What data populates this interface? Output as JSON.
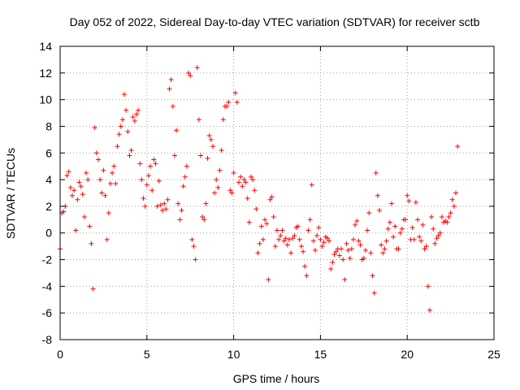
{
  "chart_data": {
    "type": "scatter",
    "title": "Day 052 of 2022, Sidereal Day-to-day VTEC variation (SDTVAR) for receiver sctb",
    "xlabel": "GPS time / hours",
    "ylabel": "SDTVAR / TECUs",
    "xlim": [
      0,
      25
    ],
    "ylim": [
      -8,
      14
    ],
    "xticks": [
      0,
      5,
      10,
      15,
      20,
      25
    ],
    "xtick_labels": [
      "0",
      "5",
      "10",
      "15",
      "20",
      "25"
    ],
    "yticks": [
      -8,
      -6,
      -4,
      -2,
      0,
      2,
      4,
      6,
      8,
      10,
      12,
      14
    ],
    "ytick_labels": [
      "-8",
      "-6",
      "-4",
      "-2",
      "0",
      "2",
      "4",
      "6",
      "8",
      "10",
      "12",
      "14"
    ],
    "grid": true,
    "marker": "+",
    "color": "#ff0000",
    "series": [
      {
        "name": "SDTVAR",
        "x": [
          0.0,
          0.1,
          0.2,
          0.3,
          0.4,
          0.5,
          0.6,
          0.7,
          0.8,
          0.9,
          1.0,
          1.1,
          1.2,
          1.3,
          1.4,
          1.5,
          1.6,
          1.7,
          1.8,
          1.9,
          2.0,
          2.1,
          2.2,
          2.3,
          2.4,
          2.5,
          2.6,
          2.7,
          2.8,
          2.9,
          3.0,
          3.1,
          3.2,
          3.3,
          3.4,
          3.5,
          3.6,
          3.7,
          3.8,
          3.9,
          4.0,
          4.1,
          4.2,
          4.3,
          4.4,
          4.5,
          4.6,
          4.7,
          4.8,
          4.9,
          5.0,
          5.1,
          5.2,
          5.3,
          5.4,
          5.5,
          5.6,
          5.7,
          5.8,
          5.9,
          6.0,
          6.1,
          6.2,
          6.3,
          6.4,
          6.5,
          6.6,
          6.7,
          6.8,
          6.9,
          7.0,
          7.1,
          7.2,
          7.3,
          7.4,
          7.5,
          7.6,
          7.7,
          7.8,
          7.9,
          8.0,
          8.1,
          8.2,
          8.3,
          8.4,
          8.5,
          8.6,
          8.7,
          8.8,
          8.9,
          9.0,
          9.1,
          9.2,
          9.3,
          9.4,
          9.5,
          9.6,
          9.7,
          9.8,
          9.9,
          10.0,
          10.1,
          10.2,
          10.3,
          10.4,
          10.5,
          10.6,
          10.7,
          10.8,
          10.9,
          11.0,
          11.1,
          11.2,
          11.3,
          11.4,
          11.5,
          11.6,
          11.7,
          11.8,
          11.9,
          12.0,
          12.1,
          12.2,
          12.3,
          12.4,
          12.5,
          12.6,
          12.7,
          12.8,
          12.9,
          13.0,
          13.1,
          13.2,
          13.3,
          13.4,
          13.5,
          13.6,
          13.7,
          13.8,
          13.9,
          14.0,
          14.1,
          14.2,
          14.3,
          14.4,
          14.5,
          14.6,
          14.7,
          14.8,
          14.9,
          15.0,
          15.1,
          15.2,
          15.3,
          15.4,
          15.5,
          15.6,
          15.7,
          15.8,
          15.9,
          16.0,
          16.1,
          16.2,
          16.3,
          16.4,
          16.5,
          16.6,
          16.7,
          16.8,
          16.9,
          17.0,
          17.1,
          17.2,
          17.3,
          17.4,
          17.5,
          17.6,
          17.7,
          17.8,
          17.9,
          18.0,
          18.1,
          18.2,
          18.3,
          18.4,
          18.5,
          18.6,
          18.7,
          18.8,
          18.9,
          19.0,
          19.1,
          19.2,
          19.3,
          19.4,
          19.5,
          19.6,
          19.7,
          19.8,
          19.9,
          20.0,
          20.1,
          20.2,
          20.3,
          20.4,
          20.5,
          20.6,
          20.7,
          20.8,
          20.9,
          21.0,
          21.1,
          21.2,
          21.3,
          21.4,
          21.5,
          21.6,
          21.7,
          21.8,
          21.9,
          22.0,
          22.1,
          22.2,
          22.3,
          22.4,
          22.5,
          22.6,
          22.7,
          22.8,
          22.9
        ],
        "y": [
          -1.2,
          1.5,
          1.6,
          2.0,
          4.3,
          4.6,
          3.4,
          2.8,
          3.2,
          0.2,
          2.5,
          3.8,
          3.5,
          2.9,
          1.2,
          4.5,
          4.0,
          0.5,
          -0.8,
          -4.2,
          7.9,
          6.0,
          5.5,
          4.0,
          3.0,
          4.7,
          2.8,
          -0.5,
          1.5,
          3.7,
          4.5,
          5.0,
          3.7,
          6.5,
          7.4,
          8.0,
          8.5,
          10.4,
          9.2,
          7.6,
          5.8,
          6.2,
          8.7,
          8.4,
          8.9,
          9.2,
          5.2,
          4.0,
          2.6,
          2.0,
          3.6,
          4.3,
          5.0,
          3.2,
          5.5,
          5.2,
          2.0,
          3.9,
          2.1,
          1.7,
          2.2,
          1.8,
          2.5,
          10.8,
          11.5,
          9.5,
          5.8,
          7.7,
          2.2,
          1.0,
          1.7,
          3.5,
          4.2,
          5.0,
          12.0,
          11.8,
          -0.5,
          -1.0,
          -2.0,
          12.4,
          8.5,
          5.8,
          1.2,
          1.0,
          2.2,
          5.6,
          7.3,
          7.0,
          6.5,
          3.0,
          4.0,
          3.4,
          4.7,
          6.2,
          8.5,
          9.5,
          9.5,
          9.8,
          3.2,
          3.0,
          4.5,
          10.5,
          9.8,
          3.8,
          4.2,
          3.5,
          4.0,
          3.8,
          2.6,
          0.8,
          4.2,
          4.0,
          3.2,
          1.8,
          -1.5,
          -0.8,
          0.5,
          -0.5,
          1.0,
          0.7,
          -3.5,
          2.5,
          2.7,
          1.2,
          -1.0,
          0.2,
          -0.5,
          -0.2,
          0.2,
          -0.6,
          -0.4,
          -0.9,
          -0.5,
          -1.5,
          -0.4,
          -0.2,
          0.4,
          0.5,
          -0.5,
          -1.0,
          -1.4,
          -2.5,
          -3.2,
          0.2,
          1.0,
          3.6,
          -0.6,
          -1.3,
          -0.2,
          0.4,
          -0.5,
          -1.0,
          -0.7,
          -0.3,
          -0.4,
          -0.6,
          -2.7,
          -2.2,
          -1.6,
          -1.4,
          -1.2,
          -1.7,
          -1.2,
          -2.0,
          -3.5,
          -0.8,
          -1.3,
          -1.9,
          -1.2,
          -0.5,
          0.6,
          0.9,
          -0.6,
          -0.9,
          -2.0,
          -1.9,
          -1.3,
          0.2,
          1.5,
          -1.5,
          -3.2,
          -4.5,
          4.5,
          2.8,
          1.7,
          -0.9,
          -1.5,
          -1.2,
          -0.6,
          0.3,
          0.8,
          2.2,
          -0.3,
          0.5,
          -1.2,
          -1.2,
          0.0,
          0.3,
          1.0,
          1.0,
          2.8,
          2.4,
          -0.5,
          0.4,
          -0.5,
          2.3,
          1.0,
          -0.3,
          -0.6,
          0.6,
          -1.2,
          -1.0,
          -4.0,
          -5.8,
          1.2,
          0.3,
          -0.8,
          -0.4,
          -0.2,
          0.0,
          1.2,
          0.8,
          0.9,
          0.8,
          1.2,
          1.5,
          2.5,
          2.0,
          3.0,
          6.5
        ]
      }
    ]
  }
}
